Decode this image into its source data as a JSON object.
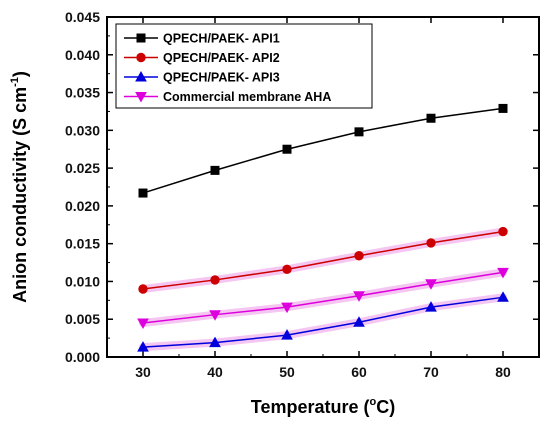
{
  "chart_data": {
    "type": "line",
    "x": [
      30,
      40,
      50,
      60,
      70,
      80
    ],
    "xlim": [
      25,
      85
    ],
    "ylim": [
      0.0,
      0.045
    ],
    "x_ticks": [
      "30",
      "40",
      "50",
      "60",
      "70",
      "80"
    ],
    "y_ticks": [
      "0.000",
      "0.005",
      "0.010",
      "0.015",
      "0.020",
      "0.025",
      "0.030",
      "0.035",
      "0.040",
      "0.045"
    ],
    "xlabel_main": "Temperature (",
    "xlabel_degree": "o",
    "xlabel_end": "C)",
    "ylabel_main": "Anion conductivity (S cm",
    "ylabel_exponent": "-1",
    "ylabel_end": ")",
    "legend_position": "top-left",
    "grid": false,
    "series": [
      {
        "name": "QPECH/PAEK- API1",
        "color": "#000000",
        "marker": "square",
        "values": [
          0.0217,
          0.0247,
          0.0275,
          0.0298,
          0.0316,
          0.0329
        ]
      },
      {
        "name": "QPECH/PAEK- API2",
        "color": "#cc0000",
        "marker": "circle",
        "values": [
          0.009,
          0.0102,
          0.0116,
          0.0134,
          0.0151,
          0.0166
        ]
      },
      {
        "name": "QPECH/PAEK- API3",
        "color": "#0000dd",
        "marker": "triangle-up",
        "values": [
          0.0013,
          0.0019,
          0.0029,
          0.0046,
          0.0066,
          0.0079
        ]
      },
      {
        "name": "Commercial membrane AHA",
        "color": "#dd00dd",
        "marker": "triangle-down",
        "values": [
          0.0045,
          0.0056,
          0.0066,
          0.0081,
          0.0097,
          0.0112
        ]
      }
    ],
    "band_color": "#f3bcef"
  }
}
